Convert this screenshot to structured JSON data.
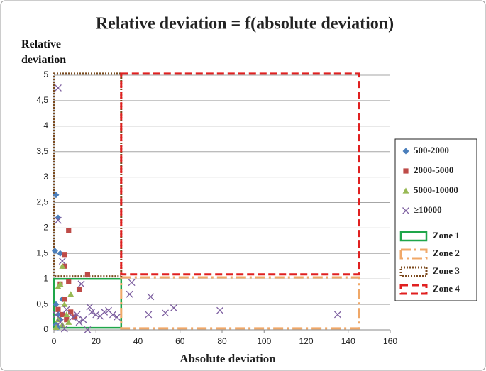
{
  "chart_data": {
    "type": "scatter",
    "title": "Relative deviation = f(absolute deviation)",
    "xlabel": "Absolute deviation",
    "ylabel": "Relative deviation",
    "xlim": [
      0,
      160
    ],
    "ylim": [
      0,
      5
    ],
    "xticks": [
      0,
      20,
      40,
      60,
      80,
      100,
      120,
      140,
      160
    ],
    "yticks": [
      0,
      {
        "value": 0.5,
        "label": "0,5"
      },
      1,
      {
        "value": 1.5,
        "label": "1,5"
      },
      2,
      {
        "value": 2.5,
        "label": "2,5"
      },
      3,
      {
        "value": 3.5,
        "label": "3,5"
      },
      4,
      {
        "value": 4.5,
        "label": "4,5"
      },
      5
    ],
    "grid": true,
    "legend": "right",
    "series": [
      {
        "name": "500-2000",
        "color": "#4a7ebb",
        "marker": "diamond",
        "x": [
          1,
          2,
          0.5,
          3,
          1,
          2,
          3,
          1,
          4,
          2
        ],
        "y": [
          2.65,
          2.2,
          1.55,
          1.5,
          0.5,
          0.3,
          0.2,
          0.1,
          0.6,
          0.05
        ]
      },
      {
        "name": "2000-5000",
        "color": "#be4b48",
        "marker": "square",
        "x": [
          7,
          5,
          5,
          16,
          12,
          7,
          5,
          3,
          2,
          4,
          6,
          8,
          10
        ],
        "y": [
          1.95,
          1.48,
          1.25,
          1.08,
          0.8,
          0.95,
          0.6,
          0.9,
          0.4,
          0.3,
          0.2,
          0.35,
          0.25
        ]
      },
      {
        "name": "5000-10000",
        "color": "#98b954",
        "marker": "triangle",
        "x": [
          4,
          2,
          3,
          8,
          5,
          2,
          6,
          4,
          1,
          7
        ],
        "y": [
          1.25,
          0.85,
          0.9,
          0.7,
          0.5,
          0.2,
          0.3,
          0.1,
          0.05,
          0.15
        ]
      },
      {
        "name": "≥10000",
        "color": "#7d5fa0",
        "marker": "x",
        "x": [
          2,
          2,
          4,
          37,
          36,
          46,
          45,
          53,
          57,
          79,
          135,
          13,
          17,
          20,
          22,
          24,
          26,
          28,
          30,
          16,
          14,
          11,
          9,
          6,
          3,
          1,
          5,
          18,
          12
        ],
        "y": [
          4.75,
          2.15,
          1.35,
          0.93,
          0.7,
          0.65,
          0.3,
          0.33,
          0.43,
          0.38,
          0.3,
          0.9,
          0.45,
          0.3,
          0.27,
          0.35,
          0.38,
          0.3,
          0.25,
          0,
          0.2,
          0.3,
          0.25,
          0.4,
          0.15,
          0.3,
          0.02,
          0.35,
          0.15
        ]
      }
    ],
    "zones": [
      {
        "name": "Zone 1",
        "color": "#1fa64a",
        "style": "solid",
        "x": [
          0,
          32
        ],
        "y": [
          0.04,
          1
        ]
      },
      {
        "name": "Zone 2",
        "color": "#f0a868",
        "style": "dashdot",
        "x": [
          32,
          145
        ],
        "y": [
          0.03,
          1.03
        ]
      },
      {
        "name": "Zone 3",
        "color": "#7b4a1e",
        "style": "dotted",
        "x": [
          0,
          32
        ],
        "y": [
          1.05,
          5.03
        ]
      },
      {
        "name": "Zone 4",
        "color": "#e02020",
        "style": "dashed",
        "x": [
          32,
          145
        ],
        "y": [
          1.09,
          5.03
        ]
      }
    ]
  }
}
